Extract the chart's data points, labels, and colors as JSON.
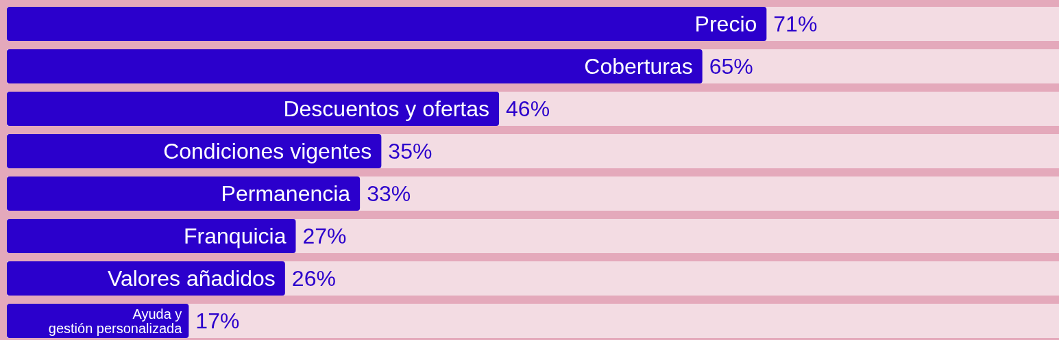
{
  "chart_data": {
    "type": "bar",
    "orientation": "horizontal",
    "categories": [
      "Precio",
      "Coberturas",
      "Descuentos y ofertas",
      "Condiciones vigentes",
      "Permanencia",
      "Franquicia",
      "Valores añadidos",
      "Ayuda y gestión personalizada"
    ],
    "values": [
      71,
      65,
      46,
      35,
      33,
      27,
      26,
      17
    ],
    "value_labels": [
      "71%",
      "65%",
      "46%",
      "35%",
      "33%",
      "27%",
      "26%",
      "17%"
    ],
    "color": "#2b00cc"
  }
}
